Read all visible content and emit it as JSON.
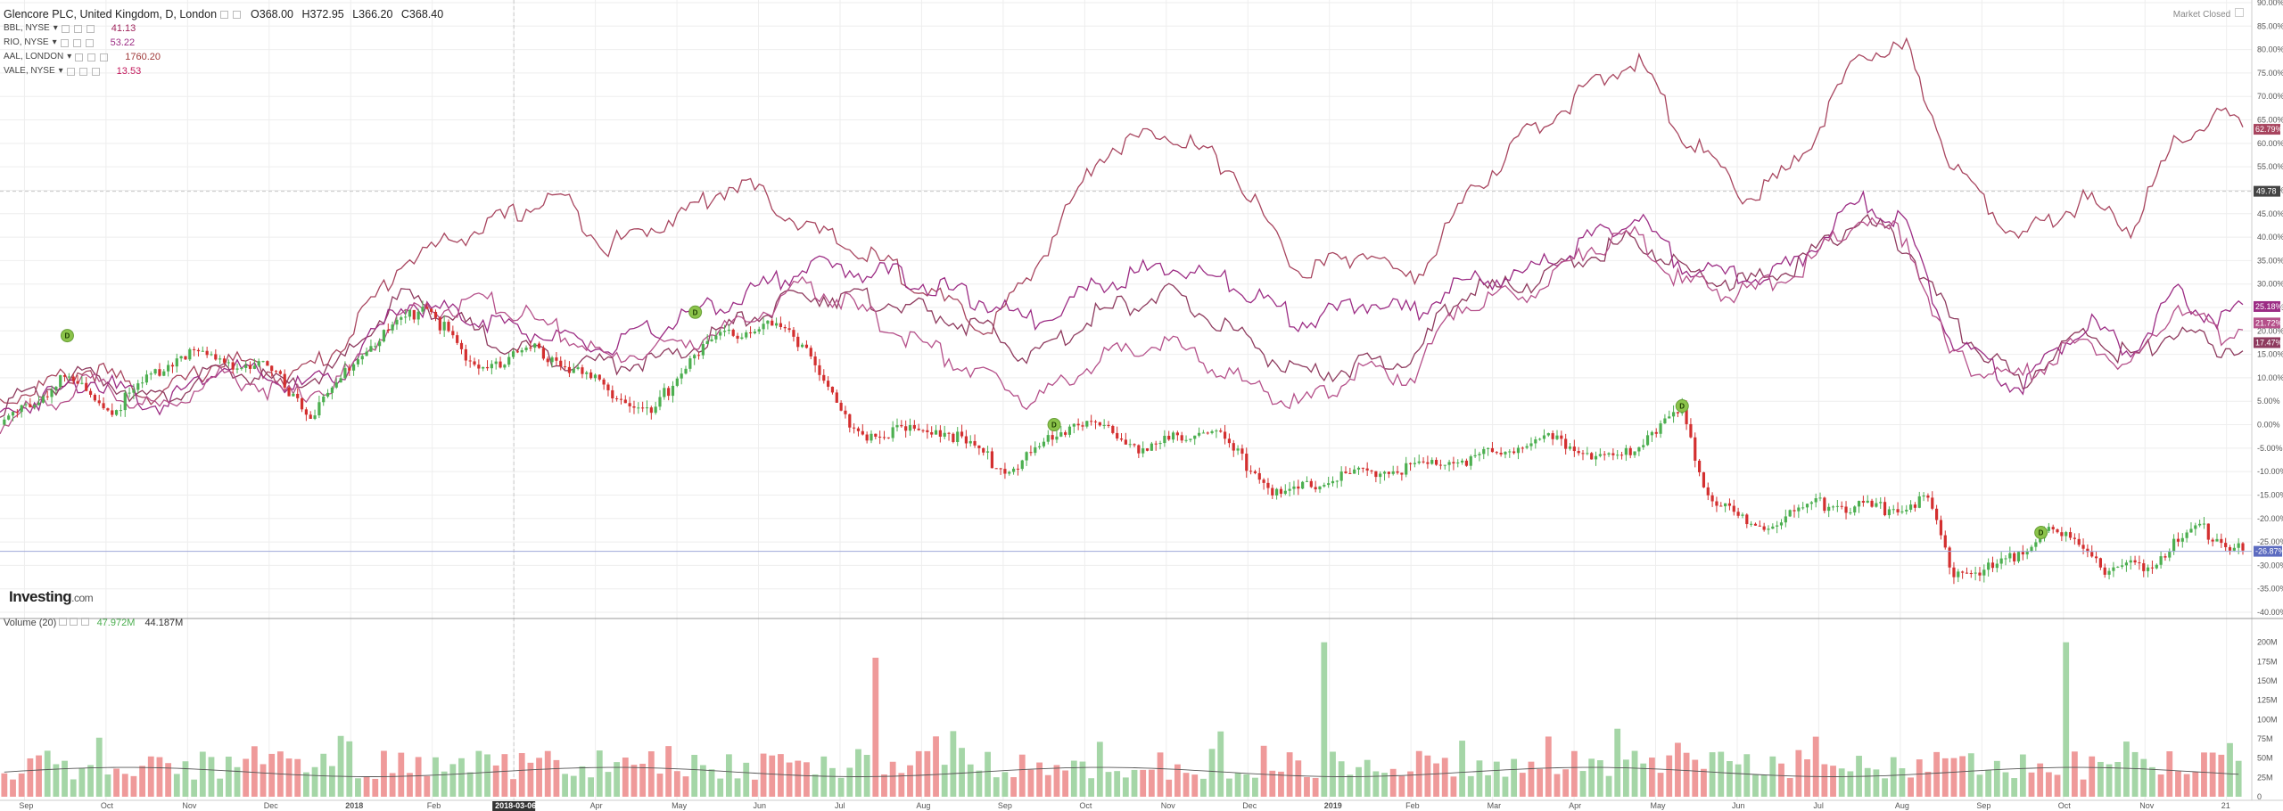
{
  "header": {
    "symbol_title": "Glencore PLC, United Kingdom, D, London",
    "ohlc": {
      "open": "O368.00",
      "high": "H372.95",
      "low": "L366.20",
      "close": "C368.40"
    },
    "market_status": "Market Closed"
  },
  "compare_series": [
    {
      "label": "BBL, NYSE",
      "value": "41.13",
      "color": "#a0255c"
    },
    {
      "label": "RIO, NYSE",
      "value": "53.22",
      "color": "#9c2c84"
    },
    {
      "label": "AAL, LONDON",
      "value": "1760.20",
      "color": "#a03a3a"
    },
    {
      "label": "VALE, NYSE",
      "value": "13.53",
      "color": "#c2185b"
    }
  ],
  "volume_legend": {
    "label": "Volume (20)",
    "value1": "47.972M",
    "value2": "44.187M"
  },
  "branding": {
    "logo_main": "Investing",
    "logo_suffix": ".com"
  },
  "colors": {
    "up": "#4caf50",
    "down": "#d32f2f",
    "vol_up": "#a5d6a7",
    "vol_down": "#ef9a9a",
    "grid": "#eeeeee",
    "crosshair": "#c8c8c8",
    "priceline": "#9fa8da"
  },
  "chart_data": {
    "type": "line",
    "title": "Glencore PLC, United Kingdom, D, London",
    "xlabel": "",
    "ylabel": "",
    "y_scale": "percent change",
    "ylim": [
      -40,
      90
    ],
    "y_ticks": [
      "90.00%",
      "85.00%",
      "80.00%",
      "75.00%",
      "70.00%",
      "65.00%",
      "60.00%",
      "55.00%",
      "50.00%",
      "45.00%",
      "40.00%",
      "35.00%",
      "30.00%",
      "25.00%",
      "20.00%",
      "15.00%",
      "10.00%",
      "5.00%",
      "0.00%",
      "-5.00%",
      "-10.00%",
      "-15.00%",
      "-20.00%",
      "-25.00%",
      "-30.00%",
      "-35.00%",
      "-40.00%"
    ],
    "x_ticks": [
      "Sep",
      "Oct",
      "Nov",
      "Dec",
      "2018",
      "Feb",
      "2018-03-06",
      "Apr",
      "May",
      "Jun",
      "Jul",
      "Aug",
      "Sep",
      "Oct",
      "Nov",
      "Dec",
      "2019",
      "Feb",
      "Mar",
      "Apr",
      "May",
      "Jun",
      "Jul",
      "Aug",
      "Sep",
      "Oct",
      "Nov",
      "21"
    ],
    "highlighted_x_tick": "2018-03-06",
    "crosshair_y_label": "49.78",
    "series": [
      {
        "name": "AAL, LONDON",
        "color": "#a8455f",
        "end_label": "62.79%",
        "values": [
          [
            0,
            5
          ],
          [
            0.04,
            12
          ],
          [
            0.07,
            6
          ],
          [
            0.1,
            14
          ],
          [
            0.13,
            10
          ],
          [
            0.15,
            16
          ],
          [
            0.18,
            35
          ],
          [
            0.22,
            43
          ],
          [
            0.25,
            49
          ],
          [
            0.27,
            38
          ],
          [
            0.3,
            44
          ],
          [
            0.33,
            52
          ],
          [
            0.36,
            42
          ],
          [
            0.4,
            33
          ],
          [
            0.44,
            20
          ],
          [
            0.46,
            32
          ],
          [
            0.49,
            58
          ],
          [
            0.52,
            63
          ],
          [
            0.55,
            54
          ],
          [
            0.58,
            32
          ],
          [
            0.61,
            37
          ],
          [
            0.63,
            30
          ],
          [
            0.65,
            46
          ],
          [
            0.68,
            62
          ],
          [
            0.71,
            72
          ],
          [
            0.73,
            78
          ],
          [
            0.75,
            62
          ],
          [
            0.78,
            48
          ],
          [
            0.8,
            55
          ],
          [
            0.83,
            79
          ],
          [
            0.85,
            80
          ],
          [
            0.87,
            56
          ],
          [
            0.9,
            40
          ],
          [
            0.93,
            48
          ],
          [
            0.95,
            42
          ],
          [
            0.97,
            60
          ],
          [
            0.99,
            66
          ],
          [
            1.0,
            63
          ]
        ]
      },
      {
        "name": "BBL, NYSE",
        "color": "#8e3a5e",
        "end_label": "17.47%",
        "values": [
          [
            0,
            4
          ],
          [
            0.04,
            11
          ],
          [
            0.07,
            5
          ],
          [
            0.1,
            12
          ],
          [
            0.13,
            8
          ],
          [
            0.15,
            12
          ],
          [
            0.18,
            28
          ],
          [
            0.22,
            18
          ],
          [
            0.25,
            14
          ],
          [
            0.27,
            13
          ],
          [
            0.3,
            14
          ],
          [
            0.33,
            22
          ],
          [
            0.36,
            28
          ],
          [
            0.4,
            26
          ],
          [
            0.44,
            20
          ],
          [
            0.46,
            14
          ],
          [
            0.49,
            24
          ],
          [
            0.52,
            28
          ],
          [
            0.55,
            20
          ],
          [
            0.58,
            10
          ],
          [
            0.61,
            13
          ],
          [
            0.63,
            14
          ],
          [
            0.65,
            28
          ],
          [
            0.68,
            30
          ],
          [
            0.71,
            36
          ],
          [
            0.73,
            40
          ],
          [
            0.75,
            33
          ],
          [
            0.78,
            30
          ],
          [
            0.8,
            34
          ],
          [
            0.83,
            44
          ],
          [
            0.85,
            38
          ],
          [
            0.87,
            22
          ],
          [
            0.9,
            9
          ],
          [
            0.93,
            20
          ],
          [
            0.95,
            14
          ],
          [
            0.97,
            20
          ],
          [
            0.99,
            16
          ],
          [
            1.0,
            17.5
          ]
        ]
      },
      {
        "name": "RIO, NYSE",
        "color": "#9c2c84",
        "end_label": "25.18%",
        "values": [
          [
            0,
            2
          ],
          [
            0.04,
            10
          ],
          [
            0.07,
            4
          ],
          [
            0.1,
            13
          ],
          [
            0.13,
            8
          ],
          [
            0.15,
            10
          ],
          [
            0.18,
            26
          ],
          [
            0.22,
            22
          ],
          [
            0.25,
            18
          ],
          [
            0.27,
            16
          ],
          [
            0.3,
            22
          ],
          [
            0.33,
            27
          ],
          [
            0.36,
            34
          ],
          [
            0.4,
            32
          ],
          [
            0.44,
            26
          ],
          [
            0.46,
            22
          ],
          [
            0.49,
            30
          ],
          [
            0.52,
            34
          ],
          [
            0.55,
            30
          ],
          [
            0.58,
            22
          ],
          [
            0.61,
            26
          ],
          [
            0.63,
            24
          ],
          [
            0.65,
            30
          ],
          [
            0.68,
            32
          ],
          [
            0.71,
            40
          ],
          [
            0.73,
            44
          ],
          [
            0.75,
            34
          ],
          [
            0.78,
            31
          ],
          [
            0.8,
            34
          ],
          [
            0.83,
            48
          ],
          [
            0.85,
            42
          ],
          [
            0.87,
            18
          ],
          [
            0.9,
            8
          ],
          [
            0.93,
            22
          ],
          [
            0.95,
            16
          ],
          [
            0.97,
            28
          ],
          [
            0.99,
            22
          ],
          [
            1.0,
            25.2
          ]
        ]
      },
      {
        "name": "VALE, NYSE",
        "color": "#b5508a",
        "end_label": "21.72%",
        "values": [
          [
            0,
            0
          ],
          [
            0.04,
            9
          ],
          [
            0.07,
            3
          ],
          [
            0.1,
            11
          ],
          [
            0.13,
            6
          ],
          [
            0.15,
            9
          ],
          [
            0.18,
            24
          ],
          [
            0.22,
            26
          ],
          [
            0.25,
            20
          ],
          [
            0.27,
            14
          ],
          [
            0.3,
            17
          ],
          [
            0.33,
            21
          ],
          [
            0.36,
            30
          ],
          [
            0.4,
            20
          ],
          [
            0.44,
            10
          ],
          [
            0.46,
            5
          ],
          [
            0.49,
            14
          ],
          [
            0.52,
            18
          ],
          [
            0.55,
            10
          ],
          [
            0.58,
            4
          ],
          [
            0.61,
            12
          ],
          [
            0.63,
            10
          ],
          [
            0.65,
            26
          ],
          [
            0.68,
            28
          ],
          [
            0.71,
            38
          ],
          [
            0.73,
            40
          ],
          [
            0.75,
            30
          ],
          [
            0.78,
            28
          ],
          [
            0.8,
            32
          ],
          [
            0.83,
            44
          ],
          [
            0.85,
            40
          ],
          [
            0.87,
            14
          ],
          [
            0.9,
            10
          ],
          [
            0.93,
            18
          ],
          [
            0.95,
            12
          ],
          [
            0.97,
            26
          ],
          [
            0.99,
            19
          ],
          [
            1.0,
            21.7
          ]
        ]
      },
      {
        "name": "Glencore PLC",
        "color": "#4caf50",
        "style": "candlestick",
        "end_label": "-26.87%",
        "values": [
          [
            0,
            0
          ],
          [
            0.03,
            10
          ],
          [
            0.05,
            3
          ],
          [
            0.08,
            15
          ],
          [
            0.12,
            12
          ],
          [
            0.14,
            2
          ],
          [
            0.16,
            15
          ],
          [
            0.19,
            26
          ],
          [
            0.21,
            12
          ],
          [
            0.24,
            16
          ],
          [
            0.27,
            8
          ],
          [
            0.29,
            2
          ],
          [
            0.31,
            16
          ],
          [
            0.34,
            22
          ],
          [
            0.36,
            17
          ],
          [
            0.38,
            -2
          ],
          [
            0.42,
            -1
          ],
          [
            0.45,
            -10
          ],
          [
            0.48,
            1
          ],
          [
            0.51,
            -5
          ],
          [
            0.54,
            -1
          ],
          [
            0.57,
            -15
          ],
          [
            0.6,
            -11
          ],
          [
            0.63,
            -9
          ],
          [
            0.66,
            -7
          ],
          [
            0.69,
            -3
          ],
          [
            0.72,
            -8
          ],
          [
            0.74,
            0
          ],
          [
            0.75,
            3
          ],
          [
            0.76,
            -14
          ],
          [
            0.78,
            -22
          ],
          [
            0.81,
            -17
          ],
          [
            0.84,
            -18
          ],
          [
            0.86,
            -16
          ],
          [
            0.87,
            -31
          ],
          [
            0.89,
            -31
          ],
          [
            0.91,
            -23
          ],
          [
            0.93,
            -25
          ],
          [
            0.94,
            -32
          ],
          [
            0.96,
            -29
          ],
          [
            0.98,
            -22
          ],
          [
            1.0,
            -27
          ]
        ]
      }
    ],
    "dividend_markers": [
      {
        "x": 0.03,
        "y": 19,
        "label": "D"
      },
      {
        "x": 0.31,
        "y": 24,
        "label": "D"
      },
      {
        "x": 0.47,
        "y": 0,
        "label": "D"
      },
      {
        "x": 0.75,
        "y": 4,
        "label": "D"
      },
      {
        "x": 0.91,
        "y": -23,
        "label": "D"
      }
    ],
    "volume": {
      "y_ticks": [
        "200M",
        "175M",
        "150M",
        "125M",
        "100M",
        "75M",
        "50M",
        "25M",
        "0"
      ],
      "ylim": [
        0,
        210
      ],
      "notable_spikes": [
        {
          "x": 0.39,
          "value": 180,
          "dir": "down"
        },
        {
          "x": 0.59,
          "value": 200,
          "dir": "up"
        },
        {
          "x": 0.92,
          "value": 200,
          "dir": "up"
        }
      ]
    }
  }
}
